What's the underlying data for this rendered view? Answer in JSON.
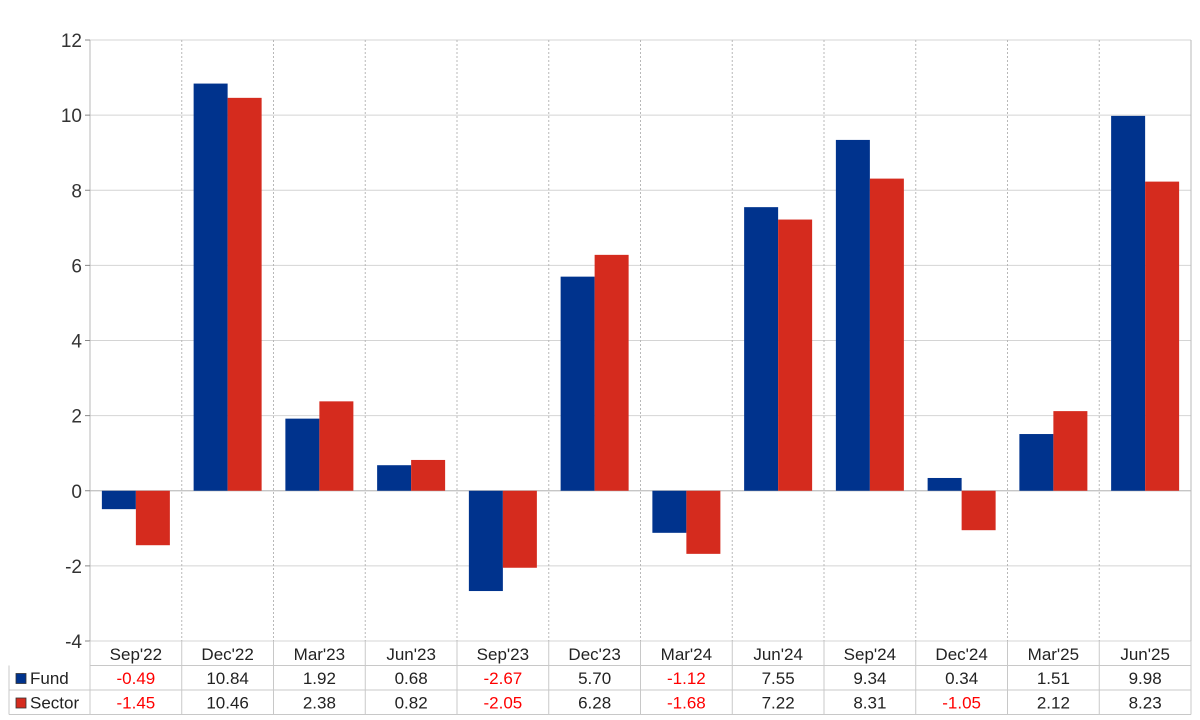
{
  "chart_data": {
    "type": "bar",
    "categories": [
      "Sep'22",
      "Dec'22",
      "Mar'23",
      "Jun'23",
      "Sep'23",
      "Dec'23",
      "Mar'24",
      "Jun'24",
      "Sep'24",
      "Dec'24",
      "Mar'25",
      "Jun'25"
    ],
    "series": [
      {
        "name": "Fund",
        "color": "#00338d",
        "values": [
          -0.49,
          10.84,
          1.92,
          0.68,
          -2.67,
          5.7,
          -1.12,
          7.55,
          9.34,
          0.34,
          1.51,
          9.98
        ],
        "labels": [
          "-0.49",
          "10.84",
          "1.92",
          "0.68",
          "-2.67",
          "5.70",
          "-1.12",
          "7.55",
          "9.34",
          "0.34",
          "1.51",
          "9.98"
        ]
      },
      {
        "name": "Sector",
        "color": "#d52b1e",
        "values": [
          -1.45,
          10.46,
          2.38,
          0.82,
          -2.05,
          6.28,
          -1.68,
          7.22,
          8.31,
          -1.05,
          2.12,
          8.23
        ],
        "labels": [
          "-1.45",
          "10.46",
          "2.38",
          "0.82",
          "-2.05",
          "6.28",
          "-1.68",
          "7.22",
          "8.31",
          "-1.05",
          "2.12",
          "8.23"
        ]
      }
    ],
    "ylim": [
      -4,
      12
    ],
    "yticks": [
      -4,
      -2,
      0,
      2,
      4,
      6,
      8,
      10,
      12
    ],
    "ytick_labels": [
      "-4",
      "-2",
      "0",
      "2",
      "4",
      "6",
      "8",
      "10",
      "12"
    ],
    "negative_label_color": "#ff0000",
    "positive_label_color": "#222222",
    "grid": true,
    "legend": "data-table-left"
  }
}
